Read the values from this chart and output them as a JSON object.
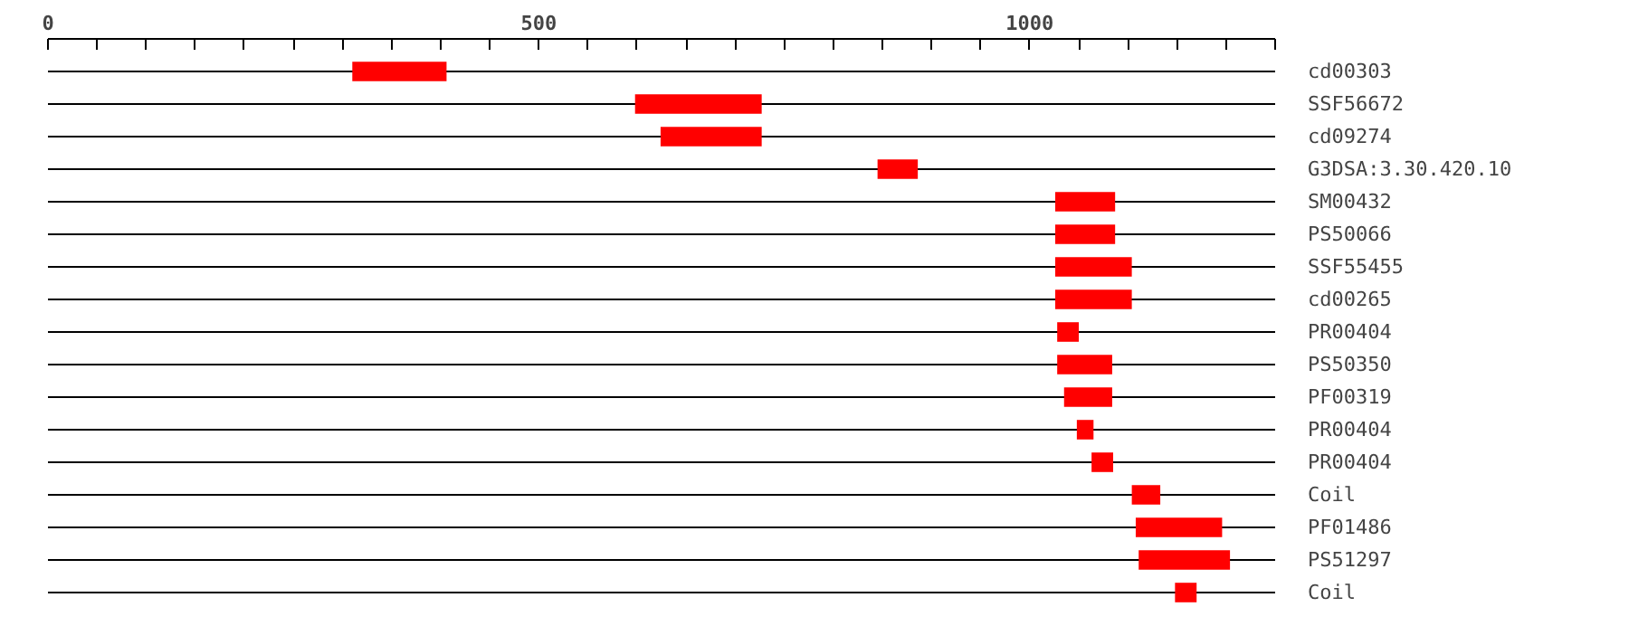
{
  "chart_data": {
    "type": "bar",
    "orientation": "horizontal",
    "categories": [
      "cd00303",
      "SSF56672",
      "cd09274",
      "G3DSA:3.30.420.10",
      "SM00432",
      "PS50066",
      "SSF55455",
      "cd00265",
      "PR00404",
      "PS50350",
      "PF00319",
      "PR00404",
      "PR00404",
      "Coil",
      "PF01486",
      "PS51297",
      "Coil"
    ],
    "base": [
      310,
      598,
      624,
      845,
      1026,
      1026,
      1026,
      1026,
      1028,
      1028,
      1035,
      1048,
      1063,
      1104,
      1108,
      1111,
      1148
    ],
    "values": [
      96,
      129,
      103,
      41,
      61,
      61,
      78,
      78,
      22,
      56,
      49,
      17,
      22,
      29,
      88,
      93,
      22
    ],
    "color": "#ff0000",
    "xlim": [
      0,
      1250
    ],
    "xticks": [
      0,
      {
        "value": 50,
        "label": null
      },
      {
        "value": 100,
        "label": null
      },
      {
        "value": 150,
        "label": null
      },
      {
        "value": 200,
        "label": null
      },
      {
        "value": 250,
        "label": null
      },
      {
        "value": 300,
        "label": null
      },
      {
        "value": 350,
        "label": null
      },
      {
        "value": 400,
        "label": null
      },
      {
        "value": 450,
        "label": null
      },
      500,
      {
        "value": 550,
        "label": null
      },
      {
        "value": 600,
        "label": null
      },
      {
        "value": 650,
        "label": null
      },
      {
        "value": 700,
        "label": null
      },
      {
        "value": 750,
        "label": null
      },
      {
        "value": 800,
        "label": null
      },
      {
        "value": 850,
        "label": null
      },
      {
        "value": 900,
        "label": null
      },
      {
        "value": 950,
        "label": null
      },
      1000,
      {
        "value": 1050,
        "label": null
      },
      {
        "value": 1100,
        "label": null
      },
      {
        "value": 1150,
        "label": null
      },
      {
        "value": 1200,
        "label": null
      },
      {
        "value": 1250,
        "label": null
      }
    ],
    "grid": "y"
  }
}
